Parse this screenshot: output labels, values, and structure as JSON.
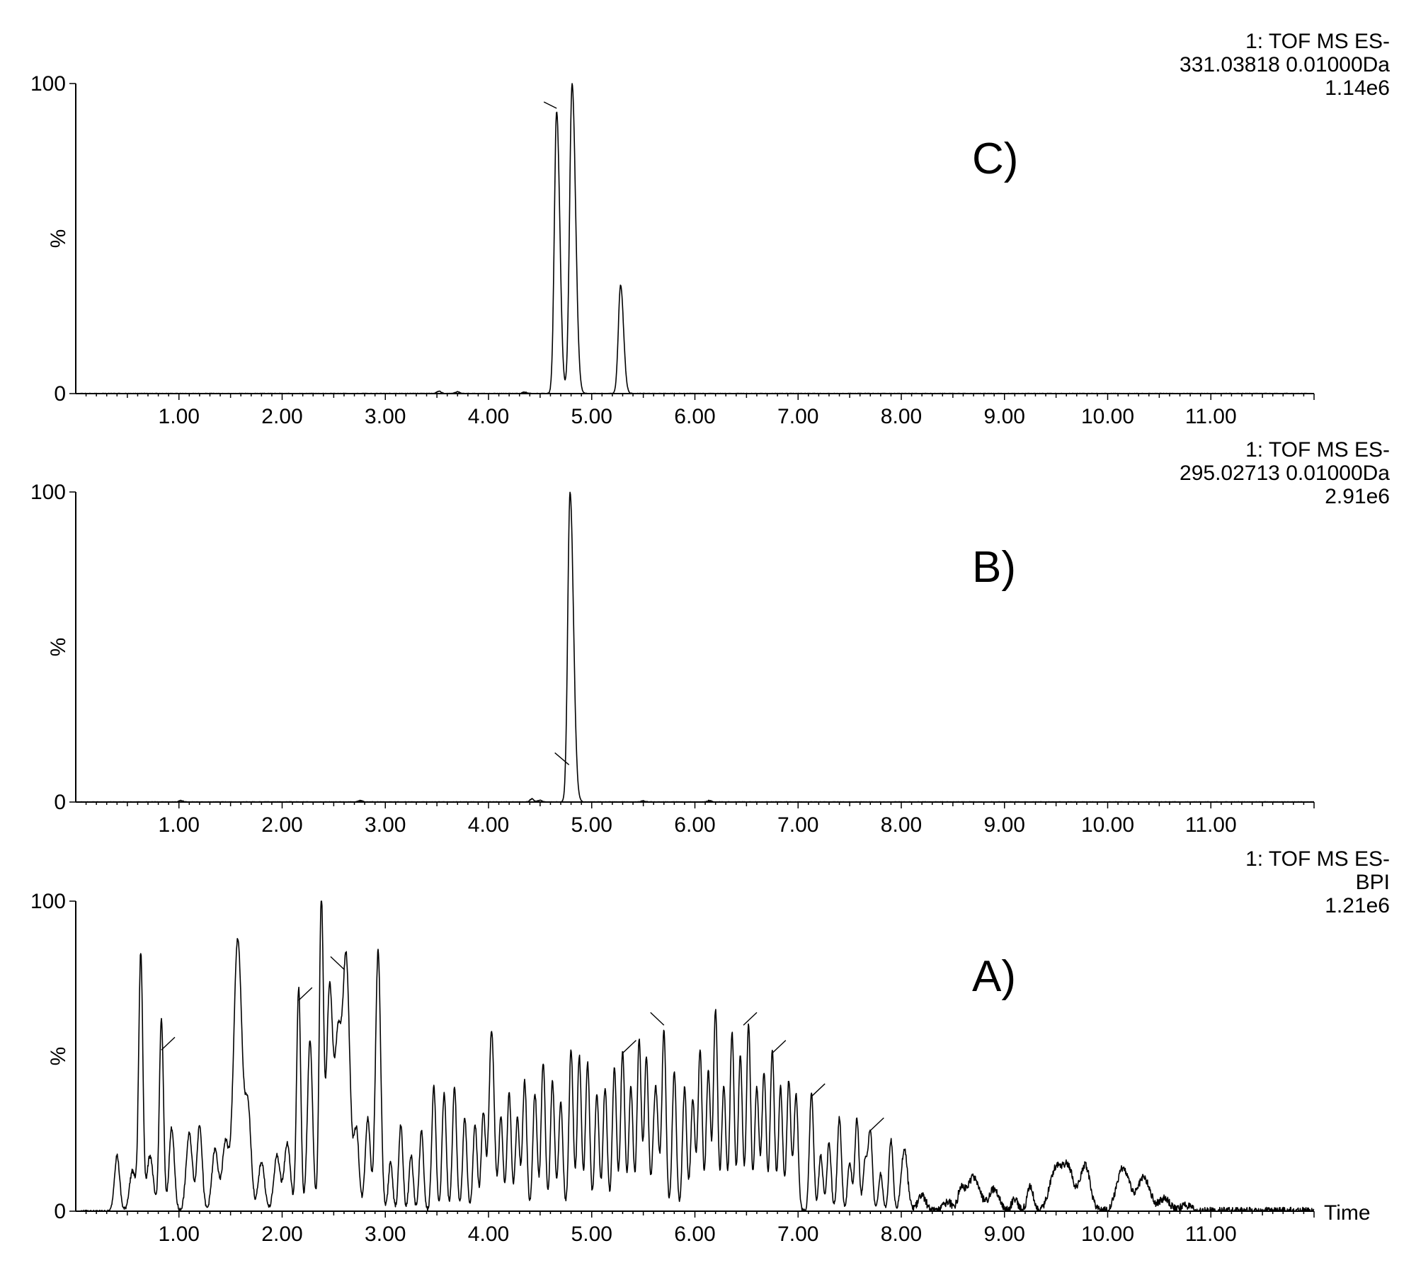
{
  "chart_data": [
    {
      "type": "line",
      "panel_label": "C)",
      "info_lines": [
        "1: TOF MS ES-",
        "331.03818 0.01000Da",
        "1.14e6"
      ],
      "ylabel": "%",
      "y_ticks": [
        "100",
        "0"
      ],
      "x_ticks": [
        "1.00",
        "2.00",
        "3.00",
        "4.00",
        "5.00",
        "6.00",
        "7.00",
        "8.00",
        "9.00",
        "10.00",
        "11.00"
      ],
      "xlim": [
        0,
        12
      ],
      "ylim": [
        0,
        100
      ],
      "peaks": [
        {
          "x": 3.52,
          "y": 0.8,
          "w": 0.02
        },
        {
          "x": 3.7,
          "y": 0.6,
          "w": 0.02
        },
        {
          "x": 4.35,
          "y": 0.5,
          "w": 0.02
        },
        {
          "x": 4.66,
          "y": 91,
          "w": 0.022,
          "tail": 1.4
        },
        {
          "x": 4.81,
          "y": 100,
          "w": 0.024,
          "tail": 1.4
        },
        {
          "x": 5.28,
          "y": 35,
          "w": 0.022,
          "tail": 1.3
        }
      ],
      "markers": [
        {
          "x": 4.66,
          "y": 92
        }
      ],
      "show_time_label": false
    },
    {
      "type": "line",
      "panel_label": "B)",
      "info_lines": [
        "1: TOF MS ES-",
        "295.02713 0.01000Da",
        "2.91e6"
      ],
      "ylabel": "%",
      "y_ticks": [
        "100",
        "0"
      ],
      "x_ticks": [
        "1.00",
        "2.00",
        "3.00",
        "4.00",
        "5.00",
        "6.00",
        "7.00",
        "8.00",
        "9.00",
        "10.00",
        "11.00"
      ],
      "xlim": [
        0,
        12
      ],
      "ylim": [
        0,
        100
      ],
      "peaks": [
        {
          "x": 1.02,
          "y": 0.5,
          "w": 0.02
        },
        {
          "x": 2.76,
          "y": 0.5,
          "w": 0.02
        },
        {
          "x": 4.42,
          "y": 1.0,
          "w": 0.02
        },
        {
          "x": 4.5,
          "y": 0.6,
          "w": 0.02
        },
        {
          "x": 4.79,
          "y": 100,
          "w": 0.022,
          "tail": 1.5
        },
        {
          "x": 5.5,
          "y": 0.4,
          "w": 0.02
        },
        {
          "x": 6.14,
          "y": 0.5,
          "w": 0.02
        }
      ],
      "markers": [
        {
          "x": 4.78,
          "y": 12
        }
      ],
      "show_time_label": false
    },
    {
      "type": "line",
      "panel_label": "A)",
      "info_lines": [
        "1: TOF MS ES-",
        "BPI",
        "1.21e6"
      ],
      "ylabel": "%",
      "y_ticks": [
        "100",
        "0"
      ],
      "x_ticks": [
        "1.00",
        "2.00",
        "3.00",
        "4.00",
        "5.00",
        "6.00",
        "7.00",
        "8.00",
        "9.00",
        "10.00",
        "11.00"
      ],
      "time_label": "Time",
      "xlim": [
        0,
        12
      ],
      "ylim": [
        0,
        100
      ],
      "peaks": [
        {
          "x": 0.4,
          "y": 18,
          "w": 0.025
        },
        {
          "x": 0.55,
          "y": 13,
          "w": 0.03
        },
        {
          "x": 0.63,
          "y": 83,
          "w": 0.02
        },
        {
          "x": 0.72,
          "y": 18,
          "w": 0.03
        },
        {
          "x": 0.83,
          "y": 62,
          "w": 0.02
        },
        {
          "x": 0.93,
          "y": 27,
          "w": 0.025
        },
        {
          "x": 1.1,
          "y": 25,
          "w": 0.03
        },
        {
          "x": 1.2,
          "y": 28,
          "w": 0.025
        },
        {
          "x": 1.35,
          "y": 20,
          "w": 0.03
        },
        {
          "x": 1.45,
          "y": 22,
          "w": 0.03
        },
        {
          "x": 1.57,
          "y": 88,
          "w": 0.04
        },
        {
          "x": 1.67,
          "y": 32,
          "w": 0.03
        },
        {
          "x": 1.8,
          "y": 16,
          "w": 0.03
        },
        {
          "x": 1.95,
          "y": 18,
          "w": 0.03
        },
        {
          "x": 2.05,
          "y": 22,
          "w": 0.03
        },
        {
          "x": 2.16,
          "y": 72,
          "w": 0.02
        },
        {
          "x": 2.27,
          "y": 55,
          "w": 0.025
        },
        {
          "x": 2.38,
          "y": 100,
          "w": 0.02
        },
        {
          "x": 2.46,
          "y": 72,
          "w": 0.03
        },
        {
          "x": 2.54,
          "y": 52,
          "w": 0.03
        },
        {
          "x": 2.62,
          "y": 82,
          "w": 0.035
        },
        {
          "x": 2.72,
          "y": 26,
          "w": 0.025
        },
        {
          "x": 2.83,
          "y": 30,
          "w": 0.025
        },
        {
          "x": 2.93,
          "y": 84,
          "w": 0.025
        },
        {
          "x": 3.05,
          "y": 16,
          "w": 0.02
        },
        {
          "x": 3.15,
          "y": 28,
          "w": 0.02
        },
        {
          "x": 3.25,
          "y": 18,
          "w": 0.02
        },
        {
          "x": 3.35,
          "y": 26,
          "w": 0.02
        },
        {
          "x": 3.47,
          "y": 40,
          "w": 0.02
        },
        {
          "x": 3.57,
          "y": 38,
          "w": 0.02
        },
        {
          "x": 3.67,
          "y": 40,
          "w": 0.02
        },
        {
          "x": 3.77,
          "y": 30,
          "w": 0.02
        },
        {
          "x": 3.87,
          "y": 28,
          "w": 0.02
        },
        {
          "x": 3.95,
          "y": 32,
          "w": 0.02
        },
        {
          "x": 4.03,
          "y": 58,
          "w": 0.025
        },
        {
          "x": 4.12,
          "y": 30,
          "w": 0.02
        },
        {
          "x": 4.2,
          "y": 38,
          "w": 0.02
        },
        {
          "x": 4.28,
          "y": 30,
          "w": 0.02
        },
        {
          "x": 4.35,
          "y": 42,
          "w": 0.02
        },
        {
          "x": 4.45,
          "y": 38,
          "w": 0.02
        },
        {
          "x": 4.53,
          "y": 48,
          "w": 0.02
        },
        {
          "x": 4.62,
          "y": 42,
          "w": 0.02
        },
        {
          "x": 4.7,
          "y": 35,
          "w": 0.02
        },
        {
          "x": 4.8,
          "y": 52,
          "w": 0.02
        },
        {
          "x": 4.88,
          "y": 50,
          "w": 0.02
        },
        {
          "x": 4.96,
          "y": 48,
          "w": 0.02
        },
        {
          "x": 5.05,
          "y": 38,
          "w": 0.02
        },
        {
          "x": 5.13,
          "y": 40,
          "w": 0.02
        },
        {
          "x": 5.22,
          "y": 46,
          "w": 0.02
        },
        {
          "x": 5.3,
          "y": 52,
          "w": 0.02
        },
        {
          "x": 5.38,
          "y": 40,
          "w": 0.02
        },
        {
          "x": 5.46,
          "y": 55,
          "w": 0.02
        },
        {
          "x": 5.53,
          "y": 50,
          "w": 0.02
        },
        {
          "x": 5.62,
          "y": 40,
          "w": 0.025
        },
        {
          "x": 5.7,
          "y": 58,
          "w": 0.02
        },
        {
          "x": 5.8,
          "y": 45,
          "w": 0.02
        },
        {
          "x": 5.9,
          "y": 40,
          "w": 0.02
        },
        {
          "x": 5.98,
          "y": 36,
          "w": 0.02
        },
        {
          "x": 6.05,
          "y": 52,
          "w": 0.02
        },
        {
          "x": 6.13,
          "y": 45,
          "w": 0.02
        },
        {
          "x": 6.2,
          "y": 65,
          "w": 0.02
        },
        {
          "x": 6.28,
          "y": 40,
          "w": 0.02
        },
        {
          "x": 6.36,
          "y": 58,
          "w": 0.02
        },
        {
          "x": 6.44,
          "y": 50,
          "w": 0.02
        },
        {
          "x": 6.52,
          "y": 60,
          "w": 0.02
        },
        {
          "x": 6.6,
          "y": 40,
          "w": 0.02
        },
        {
          "x": 6.67,
          "y": 45,
          "w": 0.02
        },
        {
          "x": 6.75,
          "y": 52,
          "w": 0.02
        },
        {
          "x": 6.83,
          "y": 40,
          "w": 0.02
        },
        {
          "x": 6.91,
          "y": 42,
          "w": 0.02
        },
        {
          "x": 6.98,
          "y": 38,
          "w": 0.02
        },
        {
          "x": 7.13,
          "y": 38,
          "w": 0.02
        },
        {
          "x": 7.22,
          "y": 18,
          "w": 0.02
        },
        {
          "x": 7.3,
          "y": 22,
          "w": 0.02
        },
        {
          "x": 7.4,
          "y": 30,
          "w": 0.02
        },
        {
          "x": 7.5,
          "y": 16,
          "w": 0.02
        },
        {
          "x": 7.57,
          "y": 30,
          "w": 0.02
        },
        {
          "x": 7.65,
          "y": 16,
          "w": 0.02
        },
        {
          "x": 7.7,
          "y": 26,
          "w": 0.02
        },
        {
          "x": 7.8,
          "y": 12,
          "w": 0.02
        },
        {
          "x": 7.9,
          "y": 23,
          "w": 0.02
        },
        {
          "x": 8.03,
          "y": 20,
          "w": 0.03
        },
        {
          "x": 8.2,
          "y": 5,
          "w": 0.04
        },
        {
          "x": 8.45,
          "y": 3,
          "w": 0.04
        },
        {
          "x": 8.58,
          "y": 7,
          "w": 0.03
        },
        {
          "x": 8.7,
          "y": 11,
          "w": 0.06
        },
        {
          "x": 8.9,
          "y": 7,
          "w": 0.05
        },
        {
          "x": 9.1,
          "y": 4,
          "w": 0.03
        },
        {
          "x": 9.25,
          "y": 8,
          "w": 0.03
        },
        {
          "x": 9.5,
          "y": 14,
          "w": 0.06
        },
        {
          "x": 9.62,
          "y": 13,
          "w": 0.05
        },
        {
          "x": 9.78,
          "y": 15,
          "w": 0.05
        },
        {
          "x": 10.15,
          "y": 14,
          "w": 0.06
        },
        {
          "x": 10.35,
          "y": 11,
          "w": 0.06
        },
        {
          "x": 10.55,
          "y": 4,
          "w": 0.05
        },
        {
          "x": 10.75,
          "y": 2,
          "w": 0.05
        }
      ],
      "markers": [
        {
          "x": 0.83,
          "y": 52
        },
        {
          "x": 2.16,
          "y": 68
        },
        {
          "x": 2.6,
          "y": 78
        },
        {
          "x": 5.3,
          "y": 51
        },
        {
          "x": 5.7,
          "y": 60
        },
        {
          "x": 6.47,
          "y": 60
        },
        {
          "x": 6.75,
          "y": 51
        },
        {
          "x": 7.13,
          "y": 37
        },
        {
          "x": 7.7,
          "y": 26
        }
      ],
      "show_time_label": true
    }
  ]
}
